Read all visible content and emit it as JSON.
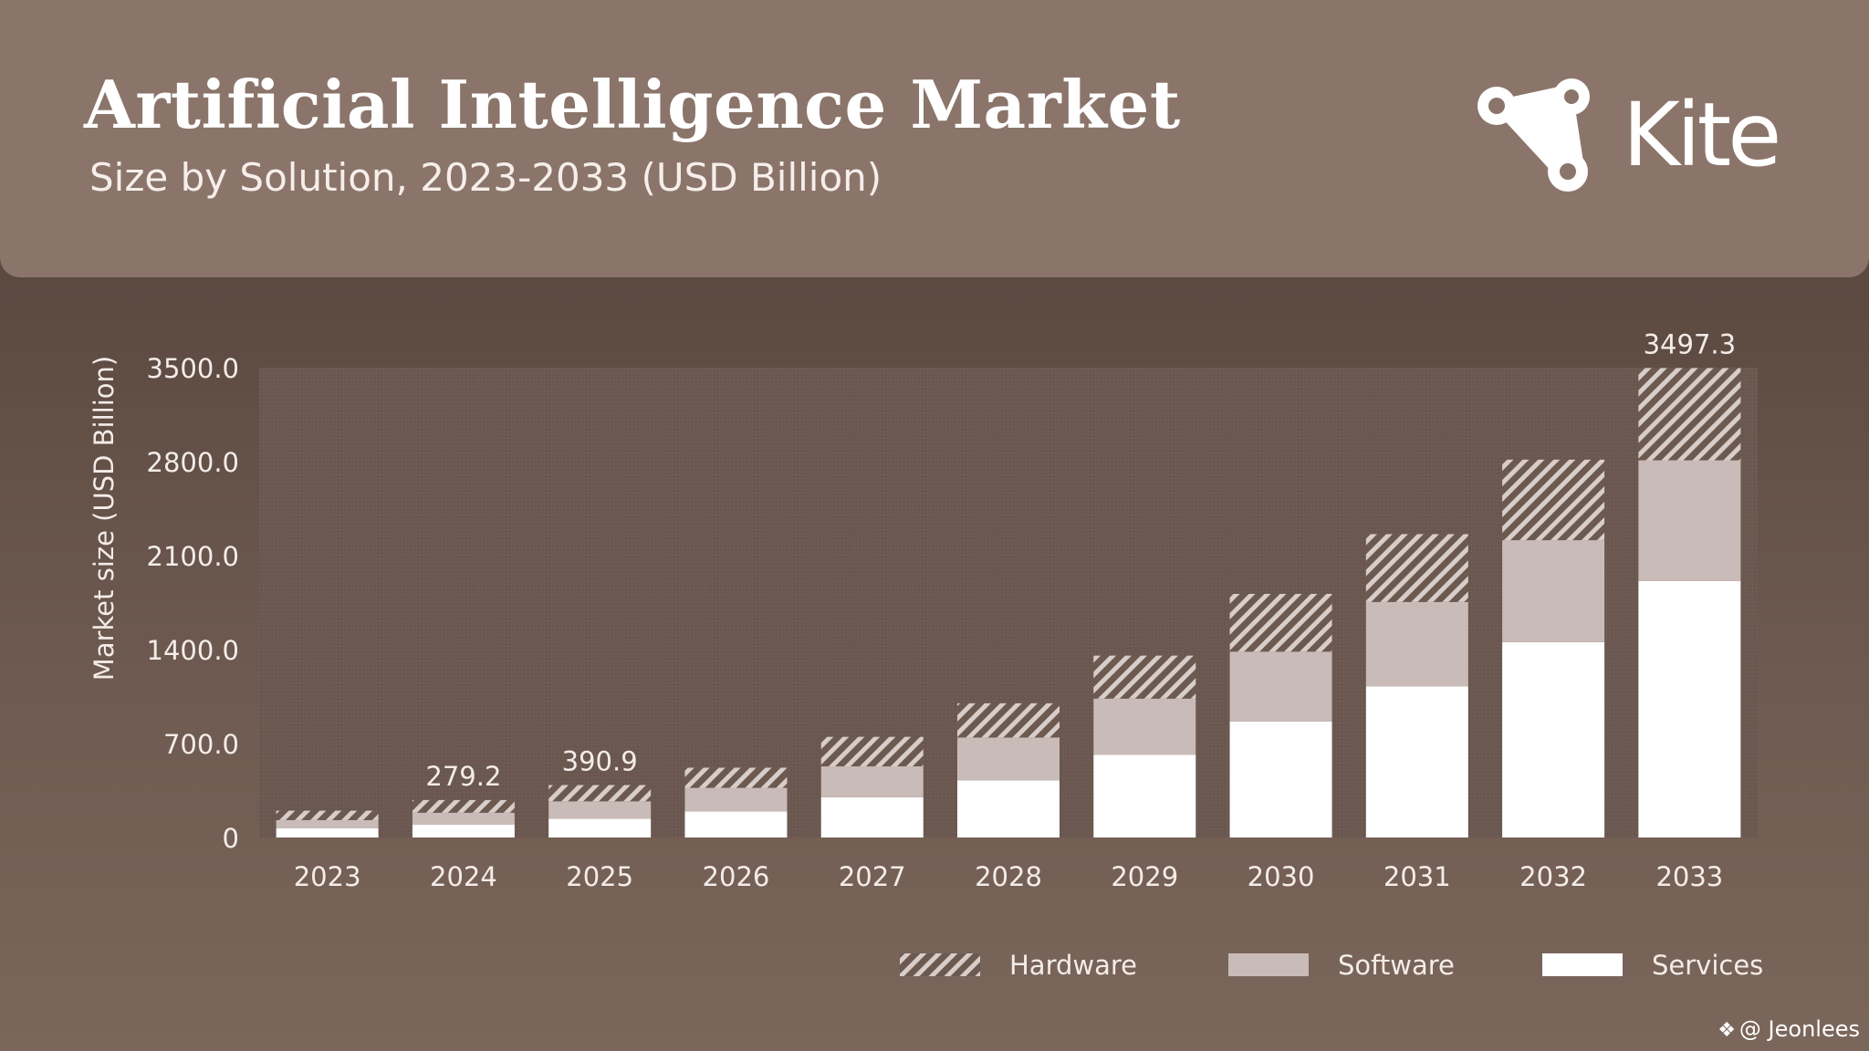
{
  "header": {
    "title": "Artificial Intelligence Market",
    "subtitle": "Size by Solution, 2023-2033 (USD Billion)",
    "brand": "Kite",
    "logo_icon": "kite-logo-icon"
  },
  "watermark": {
    "text": "@ Jeonlees",
    "icon": "diamond-logo-icon"
  },
  "colors": {
    "header_bg": "#8b756a",
    "services": "#ffffff",
    "software": "#c9bbb7",
    "hardware_stripe": "#d8cdc9",
    "plot_bg": "#6a5850"
  },
  "chart_data": {
    "type": "bar",
    "stacked": true,
    "categories": [
      "2023",
      "2024",
      "2025",
      "2026",
      "2027",
      "2028",
      "2029",
      "2030",
      "2031",
      "2032",
      "2033"
    ],
    "series": [
      {
        "name": "Services",
        "values": [
          70,
          95,
          140,
          195,
          300,
          425,
          615,
          865,
          1125,
          1455,
          1910
        ]
      },
      {
        "name": "Software",
        "values": [
          60,
          90,
          130,
          175,
          230,
          320,
          420,
          520,
          630,
          760,
          900
        ]
      },
      {
        "name": "Hardware",
        "values": [
          70,
          94.2,
          120.9,
          150,
          220,
          255,
          320,
          430,
          505,
          600,
          687.3
        ]
      }
    ],
    "totals": [
      200,
      279.2,
      390.9,
      520,
      750,
      1000,
      1355,
      1815,
      2260,
      2815,
      3497.3
    ],
    "data_labels": [
      {
        "category": "2024",
        "label": "279.2"
      },
      {
        "category": "2025",
        "label": "390.9"
      },
      {
        "category": "2033",
        "label": "3497.3"
      }
    ],
    "ylabel": "Market size (USD Billion)",
    "xlabel": "",
    "ylim": [
      0,
      3500
    ],
    "yticks": [
      0,
      700,
      1400,
      2100,
      2800,
      3500
    ],
    "ytick_labels": [
      "0",
      "700.0",
      "1400.0",
      "2100.0",
      "2800.0",
      "3500.0"
    ],
    "legend": {
      "position": "bottom-right",
      "entries": [
        "Hardware",
        "Software",
        "Services"
      ]
    },
    "grid": false
  }
}
